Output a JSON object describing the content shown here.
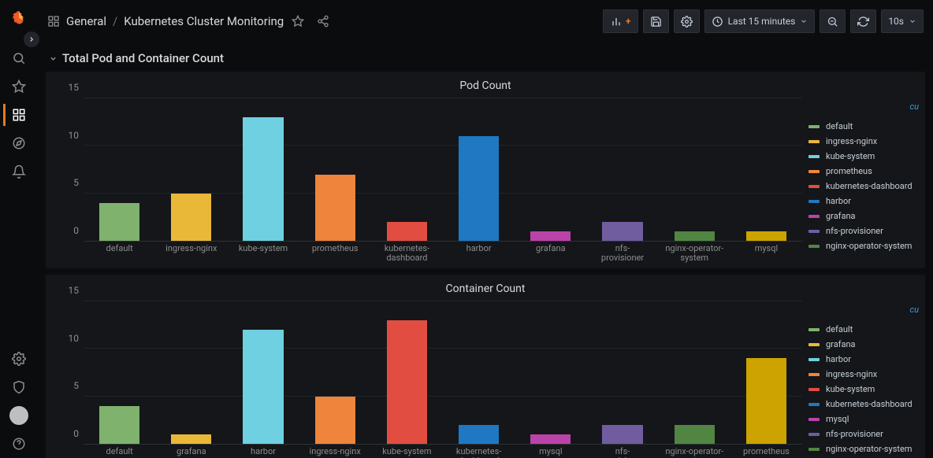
{
  "header": {
    "folder": "General",
    "title": "Kubernetes Cluster Monitoring",
    "time_range": "Last 15 minutes",
    "refresh_interval": "10s"
  },
  "row": {
    "title": "Total Pod and Container Count"
  },
  "legend_badge": "cu",
  "colors": {
    "background": "#0b0c0e",
    "panel_bg": "#141619",
    "grid": "#22252b",
    "axis_text": "#8e8e8e",
    "text": "#d8d9da"
  },
  "pod_chart": {
    "title": "Pod Count",
    "type": "bar",
    "ymax": 15,
    "ytick_step": 5,
    "categories": [
      "default",
      "ingress-nginx",
      "kube-system",
      "prometheus",
      "kubernetes-dashboard",
      "harbor",
      "grafana",
      "nfs-provisioner",
      "nginx-operator-system",
      "mysql"
    ],
    "values": [
      4,
      5,
      13,
      7,
      2,
      11,
      1,
      2,
      1,
      1
    ],
    "bar_colors": [
      "#7eb26d",
      "#eab839",
      "#6ed0e0",
      "#ef843c",
      "#e24d42",
      "#1f78c1",
      "#ba43a9",
      "#705da0",
      "#508642",
      "#cca300"
    ],
    "legend": [
      {
        "label": "default",
        "color": "#7eb26d"
      },
      {
        "label": "ingress-nginx",
        "color": "#eab839"
      },
      {
        "label": "kube-system",
        "color": "#6ed0e0"
      },
      {
        "label": "prometheus",
        "color": "#ef843c"
      },
      {
        "label": "kubernetes-dashboard",
        "color": "#e24d42"
      },
      {
        "label": "harbor",
        "color": "#1f78c1"
      },
      {
        "label": "grafana",
        "color": "#ba43a9"
      },
      {
        "label": "nfs-provisioner",
        "color": "#705da0"
      },
      {
        "label": "nginx-operator-system",
        "color": "#508642"
      }
    ]
  },
  "container_chart": {
    "title": "Container Count",
    "type": "bar",
    "ymax": 15,
    "ytick_step": 5,
    "categories": [
      "default",
      "grafana",
      "harbor",
      "ingress-nginx",
      "kube-system",
      "kubernetes-dashboard",
      "mysql",
      "nfs-provisioner",
      "nginx-operator-system",
      "prometheus"
    ],
    "values": [
      4,
      1,
      12,
      5,
      13,
      2,
      1,
      2,
      2,
      9
    ],
    "bar_colors": [
      "#7eb26d",
      "#eab839",
      "#6ed0e0",
      "#ef843c",
      "#e24d42",
      "#1f78c1",
      "#ba43a9",
      "#705da0",
      "#508642",
      "#cca300"
    ],
    "legend": [
      {
        "label": "default",
        "color": "#7eb26d"
      },
      {
        "label": "grafana",
        "color": "#eab839"
      },
      {
        "label": "harbor",
        "color": "#6ed0e0"
      },
      {
        "label": "ingress-nginx",
        "color": "#ef843c"
      },
      {
        "label": "kube-system",
        "color": "#e24d42"
      },
      {
        "label": "kubernetes-dashboard",
        "color": "#1f78c1"
      },
      {
        "label": "mysql",
        "color": "#ba43a9"
      },
      {
        "label": "nfs-provisioner",
        "color": "#705da0"
      },
      {
        "label": "nginx-operator-system",
        "color": "#508642"
      }
    ]
  }
}
